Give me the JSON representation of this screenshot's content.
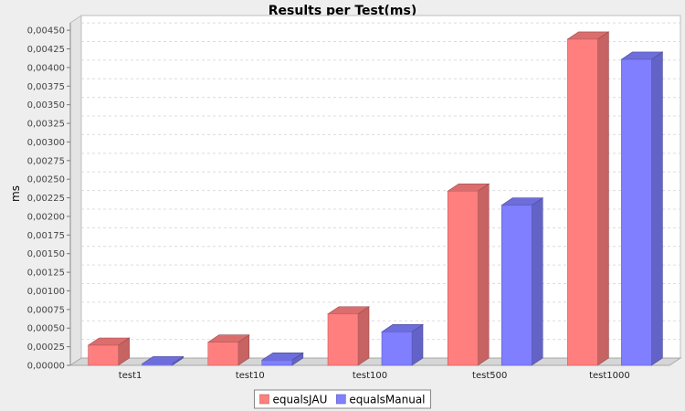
{
  "chart_data": {
    "type": "bar",
    "title": "Results per Test(ms)",
    "xlabel": "",
    "ylabel": "ms",
    "ylim": [
      0,
      0.0046
    ],
    "y_ticks": [
      0.0,
      0.00025,
      0.0005,
      0.00075,
      0.001,
      0.00125,
      0.0015,
      0.00175,
      0.002,
      0.00225,
      0.0025,
      0.00275,
      0.003,
      0.00325,
      0.0035,
      0.00375,
      0.004,
      0.00425,
      0.0045
    ],
    "y_tick_labels": [
      "0,00000",
      "0,00025",
      "0,00050",
      "0,00075",
      "0,00100",
      "0,00125",
      "0,00150",
      "0,00175",
      "0,00200",
      "0,00225",
      "0,00250",
      "0,00275",
      "0,00300",
      "0,00325",
      "0,00350",
      "0,00375",
      "0,00400",
      "0,00425",
      "0,00450"
    ],
    "categories": [
      "test1",
      "test10",
      "test100",
      "test500",
      "test1000"
    ],
    "series": [
      {
        "name": "equalsJAU",
        "color": "#ff7f7f",
        "values": [
          0.00027,
          0.00031,
          0.00069,
          0.00234,
          0.00438
        ]
      },
      {
        "name": "equalsManual",
        "color": "#7f7fff",
        "values": [
          2e-05,
          7e-05,
          0.00045,
          0.00215,
          0.00411
        ]
      }
    ],
    "grid": true,
    "legend": "bottom-center"
  }
}
